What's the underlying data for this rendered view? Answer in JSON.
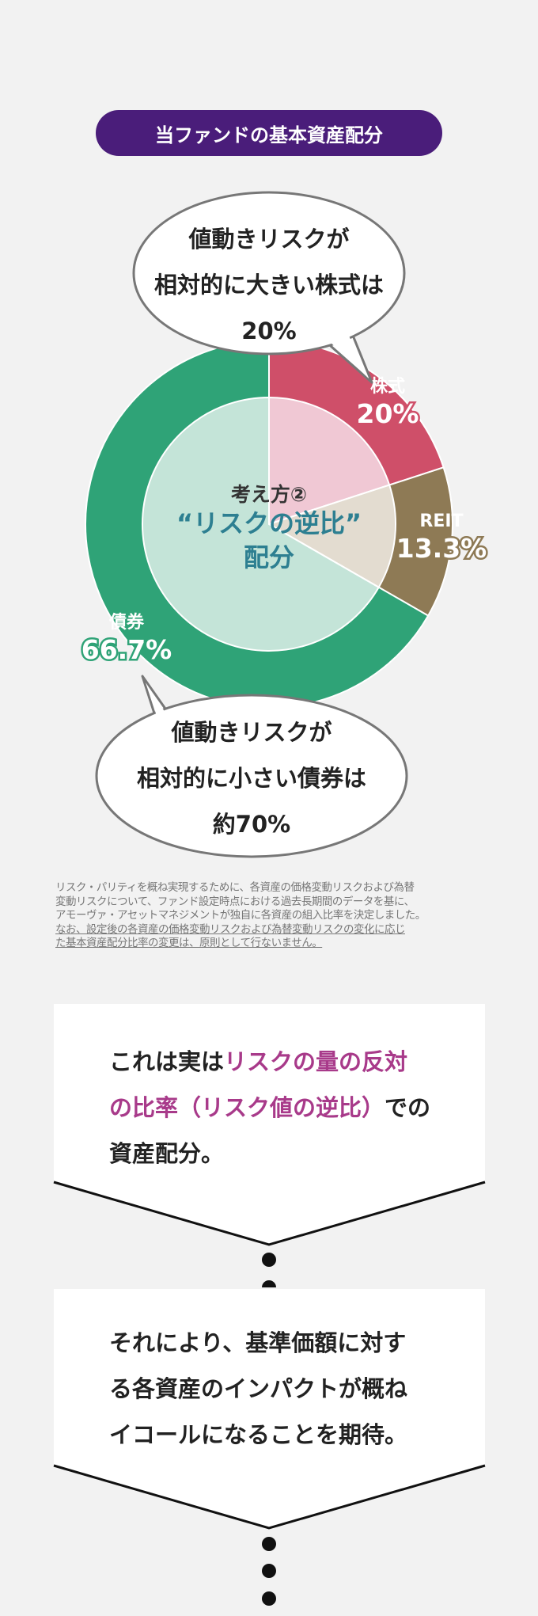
{
  "header": {
    "title": "当ファンドの基本資産配分"
  },
  "chart_data": {
    "type": "pie",
    "inner_label": [
      "考え方②",
      "“リスクの逆比”",
      "配分"
    ],
    "slices": [
      {
        "name": "株式",
        "value": 20,
        "label": "20%",
        "color": "#cf4f69",
        "inner_color": "#f0c8d4"
      },
      {
        "name": "REIT",
        "value": 13.3,
        "label": "13.3%",
        "color": "#8e7a55",
        "inner_color": "#e3dcd0"
      },
      {
        "name": "債券",
        "value": 66.7,
        "label": "66.7%",
        "color": "#2fa377",
        "inner_color": "#c4e4d8"
      }
    ]
  },
  "bubbles": {
    "top": [
      "値動きリスクが",
      "相対的に大きい株式は",
      "20%"
    ],
    "bottom": [
      "値動きリスクが",
      "相対的に小さい債券は",
      "約70%"
    ]
  },
  "note": {
    "lines": [
      "リスク・パリティを概ね実現するために、各資産の価格変動リスクおよび為替",
      "変動リスクについて、ファンド設定時点における過去長期間のデータを基に、",
      "アモーヴァ・アセットマネジメントが独自に各資産の組入比率を決定しました。"
    ],
    "underlined_lines": [
      "なお、設定後の各資産の価格変動リスクおよび為替変動リスクの変化に応じ",
      "た基本資産配分比率の変更は、原則として行ないません。"
    ]
  },
  "cards": [
    {
      "line1_a": "これは実は",
      "line1_b": "リスクの量の反対",
      "line2_a": "の比率（リスク値の逆比）",
      "line2_b": "での",
      "line3": "資産配分。"
    },
    {
      "line1": "それにより、基準価額に対す",
      "line2": "る各資産のインパクトが概ね",
      "line3": "イコールになることを期待。"
    }
  ]
}
